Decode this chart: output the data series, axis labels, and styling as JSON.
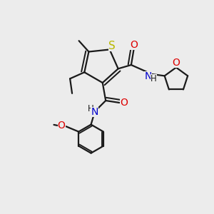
{
  "bg_color": "#ececec",
  "bond_color": "#1a1a1a",
  "S_color": "#b8b800",
  "N_color": "#0000cc",
  "O_color": "#dd0000",
  "line_width": 1.6,
  "font_size": 10,
  "figsize": [
    3.0,
    3.0
  ],
  "dpi": 100,
  "xlim": [
    0,
    10
  ],
  "ylim": [
    0,
    10
  ]
}
